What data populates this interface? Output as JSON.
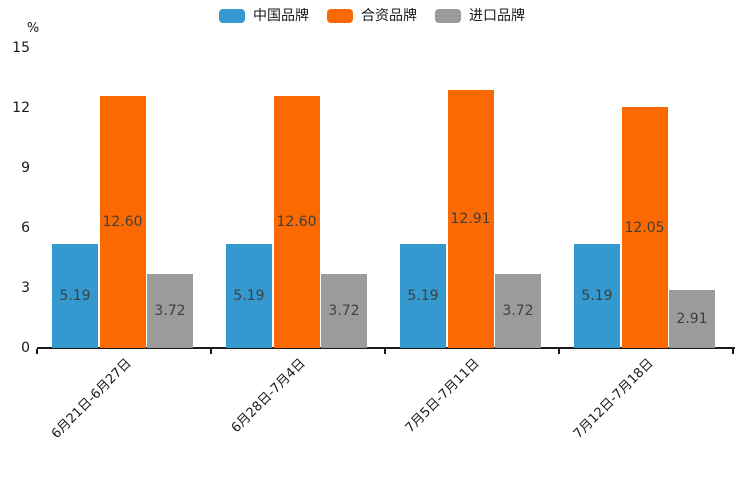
{
  "colors": {
    "china_brand": "#3499CE",
    "joint_venture_brand": "#FB6A02",
    "import_brand": "#9B9B9B",
    "axis": "#1a1a1a",
    "value_label": "#404040",
    "background": "#ffffff"
  },
  "legend": {
    "items": [
      {
        "label": "中国品牌",
        "color": "#3499CE"
      },
      {
        "label": "合资品牌",
        "color": "#FB6A02"
      },
      {
        "label": "进口品牌",
        "color": "#9B9B9B"
      }
    ]
  },
  "y_axis": {
    "unit": "%",
    "ticks": [
      0,
      3,
      6,
      9,
      12,
      15
    ],
    "min": 0,
    "max": 15
  },
  "chart_data": {
    "type": "bar",
    "title": "",
    "xlabel": "",
    "ylabel": "%",
    "ylim": [
      0,
      15
    ],
    "grid": false,
    "legend_position": "top",
    "value_labels": "inside-center",
    "value_label_decimals": 2,
    "categories": [
      "6月21日-6月27日",
      "6月28日-7月4日",
      "7月5日-7月11日",
      "7月12日-7月18日"
    ],
    "series": [
      {
        "name": "中国品牌",
        "color": "#3499CE",
        "values": [
          5.19,
          5.19,
          5.19,
          5.19
        ]
      },
      {
        "name": "合资品牌",
        "color": "#FB6A02",
        "values": [
          12.6,
          12.6,
          12.91,
          12.05
        ]
      },
      {
        "name": "进口品牌",
        "color": "#9B9B9B",
        "values": [
          3.72,
          3.72,
          3.72,
          2.91
        ]
      }
    ]
  }
}
